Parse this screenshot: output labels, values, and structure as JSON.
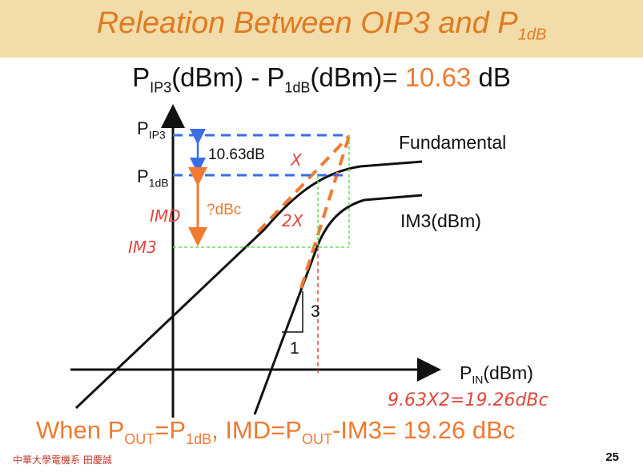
{
  "title": {
    "main": "Releation Between OIP3 and P",
    "sub": "1dB"
  },
  "formula": {
    "p_ip3": "P",
    "p_ip3_sub": "IP3",
    "unit1": "(dBm) - ",
    "p_1db": "P",
    "p_1db_sub": "1dB",
    "unit2": "(dBm)",
    "equals": "= ",
    "value": "10.63",
    "unit": " dB"
  },
  "diagram": {
    "y_label_pip3": "P",
    "y_label_pip3_sub": "IP3",
    "y_label_p1db": "P",
    "y_label_p1db_sub": "1dB",
    "delta_label": "10.63dB",
    "dbc_label": "?dBc",
    "imd_label": "IMD",
    "im3_label": "IM3",
    "x_mark": "X",
    "two_x_mark": "2X",
    "fundamental_label": "Fundamental",
    "im3_curve_label": "IM3(dBm)",
    "x_axis_label": "P",
    "x_axis_label_sub": "IN",
    "x_axis_unit": "(dBm)",
    "slope_rise": "3",
    "slope_run": "1",
    "handwritten_calc": "9.63X2=19.26dBc"
  },
  "bottom": {
    "when": "When P",
    "out1": "OUT",
    "eq1": "=P",
    "p1db_sub": "1dB",
    "imd": ", IMD=P",
    "out2": "OUT",
    "rest": "-IM3= ",
    "value": "19.26 dBc"
  },
  "footer": {
    "institution": "中華大學電機系 田慶誠",
    "page": "25"
  },
  "colors": {
    "title_bg": "#f2dcaa",
    "accent_orange": "#f07a30",
    "dash_blue": "#3a6ee8",
    "dash_green": "#66dd55",
    "hand_red": "#e0473a"
  }
}
